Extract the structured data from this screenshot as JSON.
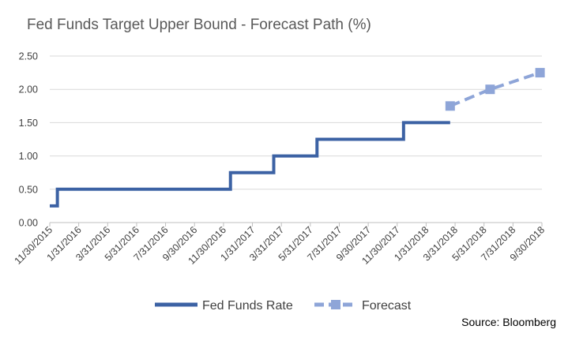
{
  "chart_data": {
    "type": "line",
    "title": "Fed Funds Target Upper Bound - Forecast Path (%)",
    "xlabel": "",
    "ylabel": "",
    "ylim": [
      0,
      2.5
    ],
    "yticks": [
      "0.00",
      "0.50",
      "1.00",
      "1.50",
      "2.00",
      "2.50"
    ],
    "xticks": [
      "11/30/2015",
      "1/31/2016",
      "3/31/2016",
      "5/31/2016",
      "7/31/2016",
      "9/30/2016",
      "11/30/2016",
      "1/31/2017",
      "3/31/2017",
      "5/31/2017",
      "7/31/2017",
      "9/30/2017",
      "11/30/2017",
      "1/31/2018",
      "3/31/2018",
      "5/31/2018",
      "7/31/2018",
      "9/30/2018"
    ],
    "xlim": [
      "2015-11-30",
      "2018-09-30"
    ],
    "grid": "horizontal",
    "legend_position": "bottom",
    "series": [
      {
        "name": "Fed Funds Rate",
        "style": "step",
        "color": "#3c62a4",
        "points": [
          {
            "x": "2015-11-30",
            "y": 0.25
          },
          {
            "x": "2015-12-16",
            "y": 0.5
          },
          {
            "x": "2016-12-14",
            "y": 0.75
          },
          {
            "x": "2017-03-15",
            "y": 1.0
          },
          {
            "x": "2017-06-14",
            "y": 1.25
          },
          {
            "x": "2017-12-13",
            "y": 1.5
          },
          {
            "x": "2018-03-21",
            "y": 1.5
          }
        ]
      },
      {
        "name": "Forecast",
        "style": "dashed-markers",
        "color": "#8ea5d8",
        "points": [
          {
            "x": "2018-03-21",
            "y": 1.75
          },
          {
            "x": "2018-06-13",
            "y": 2.0
          },
          {
            "x": "2018-09-26",
            "y": 2.25
          }
        ]
      }
    ]
  },
  "source": "Source: Bloomberg"
}
